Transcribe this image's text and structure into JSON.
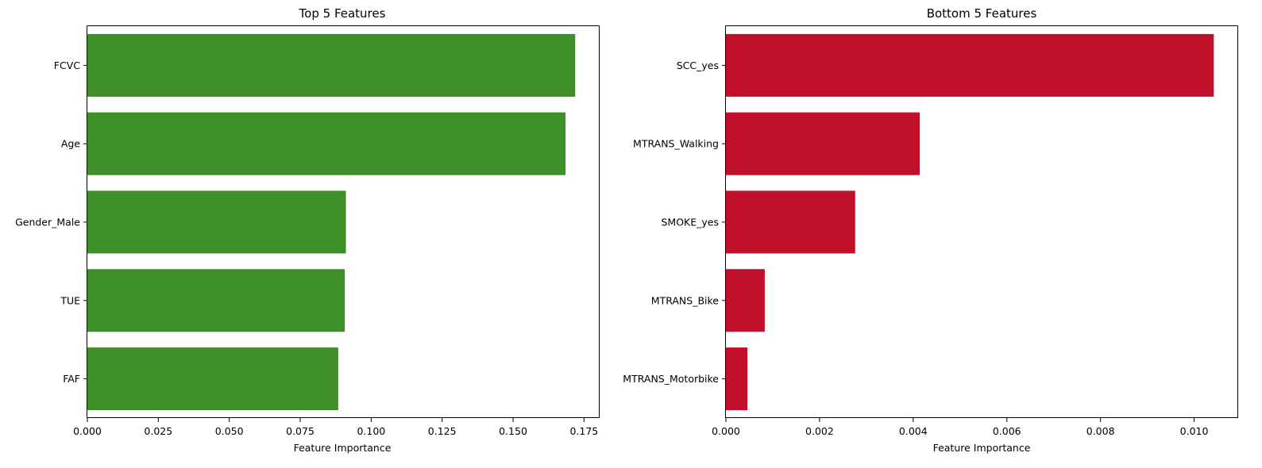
{
  "chart_data": [
    {
      "type": "bar",
      "orientation": "horizontal",
      "title": "Top 5 Features",
      "xlabel": "Feature Importance",
      "ylabel": "",
      "categories": [
        "FCVC",
        "Age",
        "Gender_Male",
        "TUE",
        "FAF"
      ],
      "values": [
        0.1719,
        0.1685,
        0.0911,
        0.0907,
        0.0884
      ],
      "xlim": [
        0,
        0.1805
      ],
      "xticks": [
        0.0,
        0.025,
        0.05,
        0.075,
        0.1,
        0.125,
        0.15,
        0.175
      ],
      "xtick_labels": [
        "0.000",
        "0.025",
        "0.050",
        "0.075",
        "0.100",
        "0.125",
        "0.150",
        "0.175"
      ],
      "color": "#3f8f29",
      "grid": false,
      "legend": "none"
    },
    {
      "type": "bar",
      "orientation": "horizontal",
      "title": "Bottom 5 Features",
      "xlabel": "Feature Importance",
      "ylabel": "",
      "categories": [
        "SCC_yes",
        "MTRANS_Walking",
        "SMOKE_yes",
        "MTRANS_Bike",
        "MTRANS_Motorbike"
      ],
      "values": [
        0.01042,
        0.00414,
        0.00276,
        0.00083,
        0.00046
      ],
      "xlim": [
        0,
        0.01094
      ],
      "xticks": [
        0.0,
        0.002,
        0.004,
        0.006,
        0.008,
        0.01
      ],
      "xtick_labels": [
        "0.000",
        "0.002",
        "0.004",
        "0.006",
        "0.008",
        "0.010"
      ],
      "color": "#c0102b",
      "grid": false,
      "legend": "none"
    }
  ]
}
